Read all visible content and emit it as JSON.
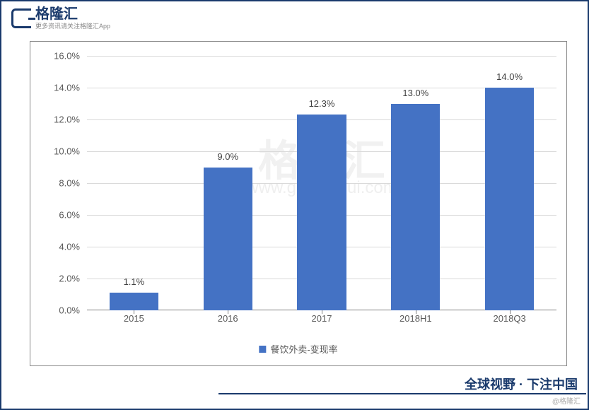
{
  "header": {
    "logo_text": "格隆汇",
    "logo_sub": "更多资讯请关注格隆汇App"
  },
  "chart": {
    "type": "bar",
    "categories": [
      "2015",
      "2016",
      "2017",
      "2018H1",
      "2018Q3"
    ],
    "values": [
      1.1,
      9.0,
      12.3,
      13.0,
      14.0
    ],
    "value_labels": [
      "1.1%",
      "9.0%",
      "12.3%",
      "13.0%",
      "14.0%"
    ],
    "bar_color": "#4472c4",
    "background_color": "#ffffff",
    "grid_color": "#d9d9d9",
    "axis_color": "#808080",
    "label_color": "#595959",
    "ylim": [
      0,
      16
    ],
    "ytick_step": 2,
    "y_tick_labels": [
      "0.0%",
      "2.0%",
      "4.0%",
      "6.0%",
      "8.0%",
      "10.0%",
      "12.0%",
      "14.0%",
      "16.0%"
    ],
    "bar_width_ratio": 0.52,
    "legend_label": "餐饮外卖-变现率",
    "label_fontsize": 13,
    "frame_border_color": "#888888"
  },
  "watermark": {
    "big": "格隆汇",
    "url": "www.gelonghui.com"
  },
  "footer": {
    "text": "全球视野 · 下注中国",
    "handle": "@格隆汇"
  }
}
